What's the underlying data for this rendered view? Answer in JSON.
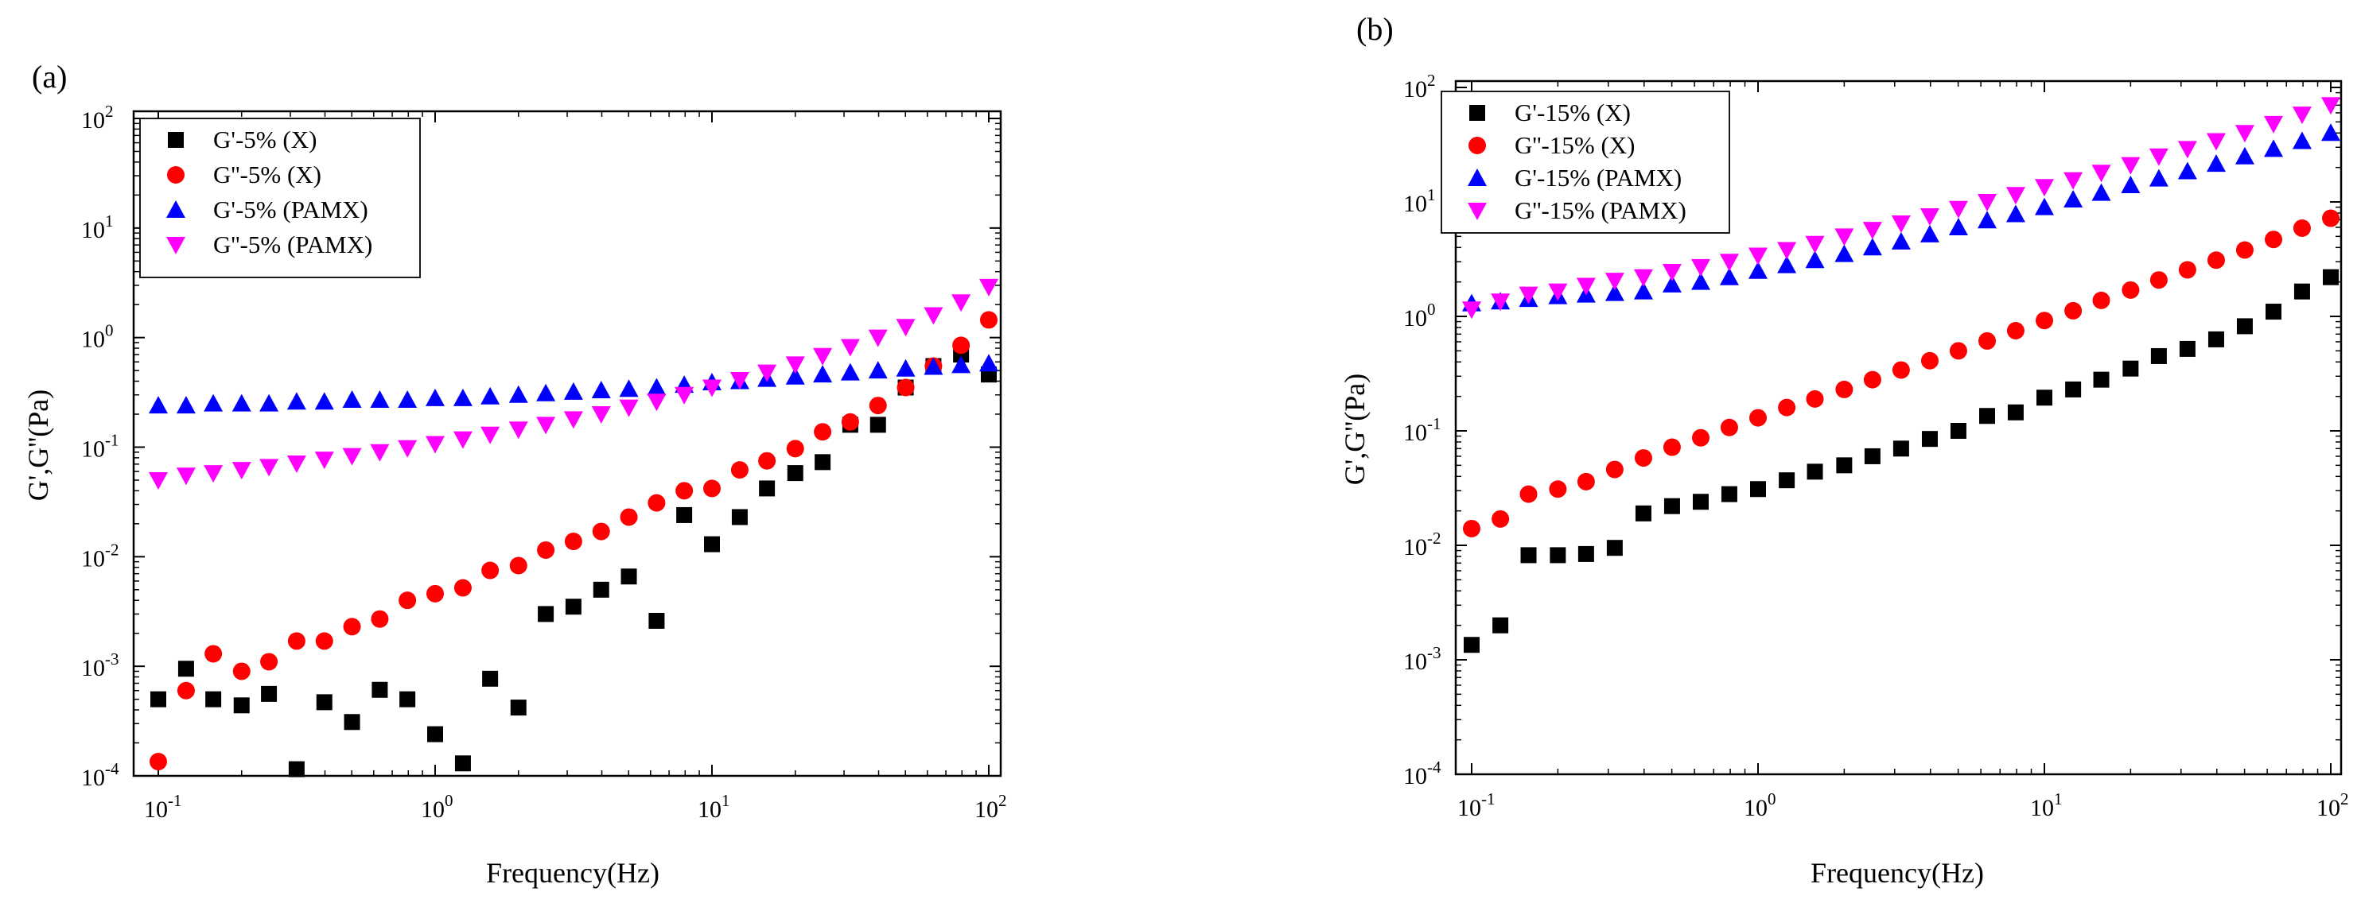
{
  "chart_data": [
    {
      "type": "scatter",
      "panel_label": "(a)",
      "xlabel": "Frequency(Hz)",
      "ylabel": "G',G''(Pa)",
      "x_scale": "log",
      "y_scale": "log",
      "xlim": [
        0.08,
        110
      ],
      "ylim": [
        0.0001,
        100
      ],
      "x_ticks": [
        {
          "value": 0.1,
          "base": "10",
          "exp": "-1"
        },
        {
          "value": 1,
          "base": "10",
          "exp": "0"
        },
        {
          "value": 10,
          "base": "10",
          "exp": "1"
        },
        {
          "value": 100,
          "base": "10",
          "exp": "2"
        }
      ],
      "y_ticks": [
        {
          "value": 0.0001,
          "base": "10",
          "exp": "-4"
        },
        {
          "value": 0.001,
          "base": "10",
          "exp": "-3"
        },
        {
          "value": 0.01,
          "base": "10",
          "exp": "-2"
        },
        {
          "value": 0.1,
          "base": "10",
          "exp": "-1"
        },
        {
          "value": 1,
          "base": "10",
          "exp": "0"
        },
        {
          "value": 10,
          "base": "10",
          "exp": "1"
        },
        {
          "value": 100,
          "base": "10",
          "exp": "2"
        }
      ],
      "legend_position": "top-left",
      "x": [
        0.1,
        0.126,
        0.158,
        0.2,
        0.251,
        0.316,
        0.398,
        0.501,
        0.631,
        0.794,
        1.0,
        1.26,
        1.58,
        2.0,
        2.51,
        3.16,
        3.98,
        5.01,
        6.31,
        7.94,
        10.0,
        12.6,
        15.8,
        20.0,
        25.1,
        31.6,
        39.8,
        50.1,
        63.1,
        79.4,
        100
      ],
      "series": [
        {
          "name": "G'-5% (X)",
          "marker": "square",
          "color": "#000000",
          "values": [
            0.0005,
            0.00095,
            0.0005,
            0.00044,
            0.00056,
            0.000115,
            0.00047,
            0.00031,
            0.00061,
            0.0005,
            0.00024,
            0.00013,
            0.00077,
            0.00042,
            0.003,
            0.0035,
            0.005,
            0.0066,
            0.0026,
            0.024,
            0.013,
            0.023,
            0.042,
            0.058,
            0.073,
            0.16,
            0.16,
            0.35,
            0.55,
            0.7,
            0.46
          ]
        },
        {
          "name": "G''-5% (X)",
          "marker": "circle",
          "color": "#ff0000",
          "values": [
            0.000135,
            0.0006,
            0.0013,
            0.0009,
            0.0011,
            0.0017,
            0.0017,
            0.0023,
            0.0027,
            0.004,
            0.0046,
            0.0052,
            0.0075,
            0.0083,
            0.0115,
            0.0138,
            0.017,
            0.023,
            0.031,
            0.04,
            0.042,
            0.062,
            0.075,
            0.097,
            0.138,
            0.17,
            0.24,
            0.35,
            0.55,
            0.85,
            1.45
          ]
        },
        {
          "name": "G'-5% (PAMX)",
          "marker": "triangle-up",
          "color": "#0000ff",
          "values": [
            0.24,
            0.24,
            0.25,
            0.25,
            0.25,
            0.26,
            0.26,
            0.27,
            0.27,
            0.27,
            0.28,
            0.28,
            0.29,
            0.3,
            0.31,
            0.32,
            0.33,
            0.34,
            0.35,
            0.37,
            0.39,
            0.4,
            0.42,
            0.44,
            0.46,
            0.48,
            0.5,
            0.52,
            0.54,
            0.56,
            0.58
          ]
        },
        {
          "name": "G''-5% (PAMX)",
          "marker": "triangle-down",
          "color": "#ff00ff",
          "values": [
            0.05,
            0.055,
            0.058,
            0.062,
            0.066,
            0.071,
            0.077,
            0.083,
            0.09,
            0.098,
            0.107,
            0.118,
            0.13,
            0.145,
            0.16,
            0.18,
            0.2,
            0.23,
            0.26,
            0.3,
            0.35,
            0.41,
            0.48,
            0.57,
            0.68,
            0.82,
            1.0,
            1.25,
            1.6,
            2.1,
            2.9
          ]
        }
      ]
    },
    {
      "type": "scatter",
      "panel_label": "(b)",
      "xlabel": "Frequency(Hz)",
      "ylabel": "G',G''(Pa)",
      "x_scale": "log",
      "y_scale": "log",
      "xlim": [
        0.08,
        110
      ],
      "ylim": [
        0.0001,
        100
      ],
      "x_ticks": [
        {
          "value": 0.1,
          "base": "10",
          "exp": "-1"
        },
        {
          "value": 1,
          "base": "10",
          "exp": "0"
        },
        {
          "value": 10,
          "base": "10",
          "exp": "1"
        },
        {
          "value": 100,
          "base": "10",
          "exp": "2"
        }
      ],
      "y_ticks": [
        {
          "value": 0.0001,
          "base": "10",
          "exp": "-4"
        },
        {
          "value": 0.001,
          "base": "10",
          "exp": "-3"
        },
        {
          "value": 0.01,
          "base": "10",
          "exp": "-2"
        },
        {
          "value": 0.1,
          "base": "10",
          "exp": "-1"
        },
        {
          "value": 1,
          "base": "10",
          "exp": "0"
        },
        {
          "value": 10,
          "base": "10",
          "exp": "1"
        },
        {
          "value": 100,
          "base": "10",
          "exp": "2"
        }
      ],
      "legend_position": "top-left",
      "x": [
        0.1,
        0.126,
        0.158,
        0.2,
        0.251,
        0.316,
        0.398,
        0.501,
        0.631,
        0.794,
        1.0,
        1.26,
        1.58,
        2.0,
        2.51,
        3.16,
        3.98,
        5.01,
        6.31,
        7.94,
        10.0,
        12.6,
        15.8,
        20.0,
        25.1,
        31.6,
        39.8,
        50.1,
        63.1,
        79.4,
        100
      ],
      "series": [
        {
          "name": "G'-15% (X)",
          "marker": "square",
          "color": "#000000",
          "values": [
            0.00135,
            0.002,
            0.0082,
            0.0082,
            0.0084,
            0.0095,
            0.019,
            0.022,
            0.024,
            0.028,
            0.031,
            0.037,
            0.044,
            0.05,
            0.06,
            0.07,
            0.085,
            0.1,
            0.135,
            0.145,
            0.195,
            0.23,
            0.28,
            0.35,
            0.45,
            0.52,
            0.63,
            0.82,
            1.1,
            1.65,
            2.2
          ]
        },
        {
          "name": "G''-15% (X)",
          "marker": "circle",
          "color": "#ff0000",
          "values": [
            0.014,
            0.017,
            0.028,
            0.031,
            0.036,
            0.046,
            0.058,
            0.072,
            0.087,
            0.107,
            0.13,
            0.16,
            0.19,
            0.23,
            0.28,
            0.34,
            0.41,
            0.5,
            0.61,
            0.75,
            0.92,
            1.12,
            1.38,
            1.7,
            2.08,
            2.55,
            3.1,
            3.8,
            4.7,
            5.9,
            7.2
          ]
        },
        {
          "name": "G'-15% (PAMX)",
          "marker": "triangle-up",
          "color": "#0000ff",
          "values": [
            1.3,
            1.35,
            1.42,
            1.5,
            1.55,
            1.6,
            1.65,
            1.9,
            2.0,
            2.2,
            2.5,
            2.8,
            3.1,
            3.5,
            4.0,
            4.5,
            5.2,
            6.0,
            6.9,
            7.8,
            9.0,
            10.5,
            12.0,
            14.0,
            16.0,
            18.5,
            21.5,
            25.0,
            29.0,
            34.0,
            40.0
          ]
        },
        {
          "name": "G''-15% (PAMX)",
          "marker": "triangle-down",
          "color": "#ff00ff",
          "values": [
            1.15,
            1.35,
            1.55,
            1.65,
            1.85,
            2.05,
            2.2,
            2.45,
            2.7,
            3.0,
            3.4,
            3.8,
            4.3,
            5.0,
            5.7,
            6.5,
            7.5,
            8.7,
            10.0,
            11.5,
            13.5,
            15.5,
            18.0,
            21.0,
            25.0,
            29.0,
            34.0,
            40.0,
            48.0,
            58.0,
            70.0
          ]
        }
      ]
    }
  ]
}
